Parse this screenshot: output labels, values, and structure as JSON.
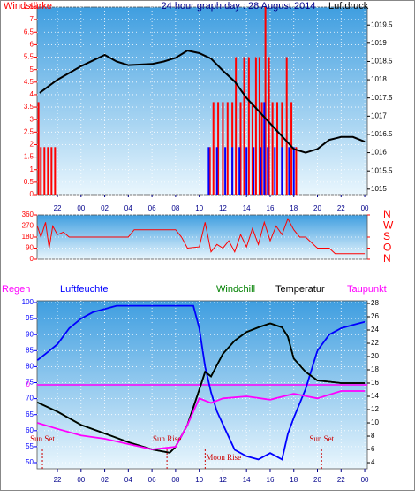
{
  "chart_data": [
    {
      "type": "bar-line",
      "title": "24 hour graph day : 28 August 2014",
      "y_label": "Windstärke",
      "y2_label": "Luftdruck",
      "xlim": [
        20.28,
        48.22
      ],
      "xticks": [
        {
          "value": 22,
          "label": "22"
        },
        {
          "value": 24,
          "label": "00"
        },
        {
          "value": 26,
          "label": "02"
        },
        {
          "value": 28,
          "label": "04"
        },
        {
          "value": 30,
          "label": "06"
        },
        {
          "value": 32,
          "label": "08"
        },
        {
          "value": 34,
          "label": "10"
        },
        {
          "value": 36,
          "label": "12"
        },
        {
          "value": 38,
          "label": "14"
        },
        {
          "value": 40,
          "label": "16"
        },
        {
          "value": 42,
          "label": "18"
        },
        {
          "value": 44,
          "label": "20"
        },
        {
          "value": 46,
          "label": "22"
        },
        {
          "value": 48,
          "label": "00"
        }
      ],
      "ylim": [
        0,
        7.5
      ],
      "yticks": [
        0,
        0.5,
        1,
        1.5,
        2,
        2.5,
        3,
        3.5,
        4,
        4.5,
        5,
        5.5,
        6,
        6.5,
        7,
        7.5
      ],
      "y2lim": [
        1014.85,
        1019.99
      ],
      "y2ticks": [
        1015,
        1015.5,
        1016,
        1016.5,
        1017,
        1017.5,
        1018,
        1018.5,
        1019,
        1019.5
      ],
      "grid": true,
      "series": [
        {
          "color": "#ff0000",
          "kind": "bar",
          "x": [
            20.4,
            20.6,
            20.9,
            21.2,
            21.5,
            21.8,
            34.9,
            35.2,
            35.6,
            36.0,
            36.4,
            36.8,
            37.1,
            37.5,
            37.8,
            38.2,
            38.5,
            38.8,
            39.1,
            39.3,
            39.6,
            39.9,
            40.2,
            40.6,
            41.0,
            41.4,
            41.8,
            42.2
          ],
          "values": [
            3.7,
            1.9,
            1.9,
            1.9,
            1.9,
            1.9,
            1.9,
            3.7,
            3.7,
            3.7,
            3.7,
            3.7,
            5.5,
            3.7,
            5.5,
            5.5,
            3.7,
            5.5,
            5.5,
            3.7,
            7.5,
            5.5,
            3.7,
            3.7,
            3.7,
            5.5,
            3.7,
            1.9
          ]
        },
        {
          "color": "#0000ff",
          "kind": "bar",
          "x": [
            34.8,
            35.5,
            36.2,
            36.8,
            37.4,
            38.0,
            38.6,
            39.2,
            39.5,
            39.8,
            40.4,
            41.0,
            41.6,
            42.0
          ],
          "values": [
            1.9,
            1.9,
            1.9,
            1.9,
            1.9,
            1.9,
            1.9,
            1.9,
            3.7,
            1.9,
            1.9,
            1.9,
            1.9,
            1.9
          ]
        },
        {
          "color": "#000000",
          "kind": "line",
          "axis": "y2",
          "x": [
            20.5,
            22,
            24,
            26,
            27,
            28,
            30,
            31,
            32,
            33,
            34,
            35,
            36,
            37,
            38,
            39,
            40,
            41,
            42,
            43,
            44,
            45,
            46,
            47,
            48
          ],
          "values": [
            1017.64,
            1018.0,
            1018.37,
            1018.68,
            1018.5,
            1018.4,
            1018.43,
            1018.5,
            1018.6,
            1018.8,
            1018.73,
            1018.58,
            1018.25,
            1017.95,
            1017.5,
            1017.15,
            1016.8,
            1016.45,
            1016.1,
            1016.0,
            1016.1,
            1016.35,
            1016.43,
            1016.43,
            1016.3
          ]
        }
      ]
    },
    {
      "type": "line",
      "xlim": [
        20.28,
        48.22
      ],
      "ylim": [
        0,
        360
      ],
      "yticks": [
        0,
        90,
        180,
        270,
        360
      ],
      "y2lim": [
        0,
        360
      ],
      "y2ticks": [
        {
          "value": 360,
          "label": "N"
        },
        {
          "value": 270,
          "label": "W"
        },
        {
          "value": 180,
          "label": "S"
        },
        {
          "value": 90,
          "label": "O"
        },
        {
          "value": 0,
          "label": "N"
        }
      ],
      "grid": true,
      "series": [
        {
          "color": "#ff0000",
          "x": [
            20.3,
            20.6,
            21,
            21.3,
            21.6,
            22,
            22.5,
            23,
            25,
            27,
            28,
            28.5,
            30,
            32,
            32.5,
            33,
            34,
            34.5,
            35,
            35.5,
            36,
            36.5,
            37,
            37.5,
            38,
            38.5,
            39,
            39.5,
            40,
            40.5,
            41,
            41.5,
            42,
            42.5,
            43,
            44,
            45,
            45.5,
            48
          ],
          "values": [
            270,
            180,
            300,
            90,
            270,
            200,
            220,
            180,
            180,
            180,
            180,
            240,
            240,
            240,
            180,
            90,
            100,
            300,
            60,
            120,
            90,
            150,
            60,
            200,
            100,
            250,
            120,
            300,
            150,
            270,
            200,
            330,
            240,
            180,
            180,
            90,
            90,
            45,
            45
          ]
        }
      ]
    },
    {
      "type": "line",
      "xlim": [
        20.28,
        48.22
      ],
      "xticks": [
        {
          "value": 22,
          "label": "22"
        },
        {
          "value": 24,
          "label": "00"
        },
        {
          "value": 26,
          "label": "02"
        },
        {
          "value": 28,
          "label": "04"
        },
        {
          "value": 30,
          "label": "06"
        },
        {
          "value": 32,
          "label": "08"
        },
        {
          "value": 34,
          "label": "10"
        },
        {
          "value": 36,
          "label": "12"
        },
        {
          "value": 38,
          "label": "14"
        },
        {
          "value": 40,
          "label": "16"
        },
        {
          "value": 42,
          "label": "18"
        },
        {
          "value": 44,
          "label": "20"
        },
        {
          "value": 46,
          "label": "22"
        },
        {
          "value": 48,
          "label": "00"
        }
      ],
      "ylim": [
        48.07,
        100.55
      ],
      "yticks": [
        50,
        55,
        60,
        65,
        70,
        75,
        80,
        85,
        90,
        95,
        100
      ],
      "y2lim": [
        3.07,
        28.4
      ],
      "y2ticks": [
        4,
        6,
        8,
        10,
        12,
        14,
        16,
        18,
        20,
        22,
        24,
        26,
        28
      ],
      "rain_label": "Regen",
      "rain_color": "#ff00ff",
      "rain_lim": [
        -1,
        1
      ],
      "rain_ticks": [
        0
      ],
      "grid": true,
      "series": [
        {
          "name": "Luftfeuchte",
          "color": "#0000ff",
          "x": [
            20.3,
            21,
            22,
            23,
            24,
            25,
            26,
            27,
            28,
            30,
            32,
            33.5,
            34,
            34.5,
            35,
            35.5,
            36,
            37,
            38,
            39,
            40,
            41,
            41.5,
            42,
            43,
            44,
            45,
            46,
            47,
            48
          ],
          "values": [
            82,
            84,
            87,
            92,
            95,
            97,
            98,
            99,
            99,
            99,
            99,
            99,
            92,
            80,
            72,
            66,
            62,
            54,
            52,
            51,
            53,
            51,
            59,
            64,
            73,
            85,
            90,
            92,
            93,
            94
          ]
        },
        {
          "name": "Windchill",
          "color": "#008000",
          "axis": "y2",
          "x": [
            20.3,
            22,
            24,
            26,
            28,
            30,
            31.5,
            32,
            33,
            34,
            34.5,
            35,
            36,
            37,
            38,
            39,
            40,
            41,
            41.5,
            42,
            43,
            44,
            46,
            48
          ],
          "values": [
            13.1,
            11.7,
            9.7,
            8.4,
            7.1,
            6.0,
            5.5,
            6.4,
            9.7,
            15,
            17.7,
            17,
            20.4,
            22.4,
            23.7,
            24.4,
            25,
            24.4,
            23,
            19.7,
            17.7,
            16.4,
            16,
            16
          ]
        },
        {
          "name": "Temperatur",
          "color": "#000000",
          "axis": "y2",
          "x": [
            20.3,
            22,
            24,
            26,
            28,
            30,
            31.5,
            32,
            33,
            34,
            34.5,
            35,
            36,
            37,
            38,
            39,
            40,
            41,
            41.5,
            42,
            43,
            44,
            46,
            48
          ],
          "values": [
            13.1,
            11.7,
            9.7,
            8.4,
            7.1,
            6.0,
            5.5,
            6.4,
            9.7,
            15,
            17.7,
            17,
            20.4,
            22.4,
            23.7,
            24.4,
            25,
            24.4,
            23,
            19.7,
            17.7,
            16.4,
            16,
            16
          ]
        },
        {
          "name": "Taupunkt",
          "color": "#ff00ff",
          "axis": "y2",
          "x": [
            20.3,
            22,
            24,
            26,
            28,
            30,
            32,
            33,
            34,
            35,
            36,
            38,
            40,
            42,
            44,
            46,
            48
          ],
          "values": [
            10,
            9.1,
            8.1,
            7.6,
            6.8,
            6,
            6.4,
            9.7,
            13.7,
            13,
            13.7,
            14,
            13.5,
            14.4,
            13.7,
            14.8,
            14.8
          ]
        }
      ],
      "annotations": [
        {
          "text": "Sun Set",
          "x": 20.73
        },
        {
          "text": "Sun Rise",
          "x": 31.27
        },
        {
          "text": "Moon Rise",
          "x": 34.5
        },
        {
          "text": "Sun Set",
          "x": 44.35
        }
      ]
    }
  ]
}
